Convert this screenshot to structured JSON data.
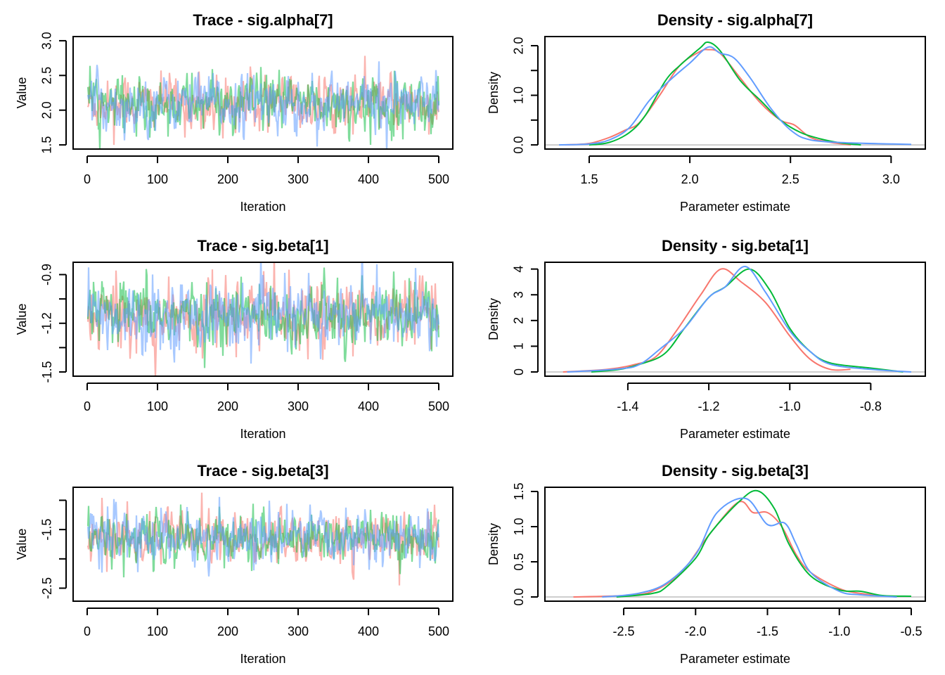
{
  "colors": {
    "chain1": "#F8766D",
    "chain2": "#00BA38",
    "chain3": "#619CFF",
    "zero_line": "#BEBEBE"
  },
  "chart_data": [
    {
      "type": "line",
      "kind": "trace",
      "title": "Trace - sig.alpha[7]",
      "xlabel": "Iteration",
      "ylabel": "Value",
      "xlim": [
        0,
        500
      ],
      "ylim": [
        1.5,
        3.0
      ],
      "xticks": [
        0,
        100,
        200,
        300,
        400,
        500
      ],
      "xtick_labels": [
        "0",
        "100",
        "200",
        "300",
        "400",
        "500"
      ],
      "yticks": [
        1.5,
        2.0,
        2.5,
        3.0
      ],
      "ytick_labels": [
        "1.5",
        "2.0",
        "2.5",
        "3.0"
      ],
      "center": 2.1,
      "spread": 0.18,
      "chains": 3,
      "iterations": 500
    },
    {
      "type": "line",
      "kind": "density",
      "title": "Density - sig.alpha[7]",
      "xlabel": "Parameter estimate",
      "ylabel": "Density",
      "xlim": [
        1.35,
        3.1
      ],
      "ylim": [
        0,
        2.1
      ],
      "xticks": [
        1.5,
        2.0,
        2.5,
        3.0
      ],
      "xtick_labels": [
        "1.5",
        "2.0",
        "2.5",
        "3.0"
      ],
      "yticks": [
        0,
        0.5,
        1.0,
        1.5,
        2.0
      ],
      "ytick_labels": [
        "0.0",
        "",
        "1.0",
        "",
        "2.0"
      ],
      "series": [
        {
          "name": "chain 1",
          "x": [
            1.38,
            1.5,
            1.6,
            1.68,
            1.75,
            1.85,
            1.95,
            2.05,
            2.09,
            2.15,
            2.25,
            2.35,
            2.45,
            2.52,
            2.6,
            2.7,
            2.8
          ],
          "y": [
            0,
            0.03,
            0.15,
            0.3,
            0.45,
            1.0,
            1.6,
            1.88,
            1.92,
            1.85,
            1.35,
            0.85,
            0.5,
            0.4,
            0.15,
            0.05,
            0
          ]
        },
        {
          "name": "chain 2",
          "x": [
            1.5,
            1.6,
            1.7,
            1.78,
            1.88,
            1.95,
            2.05,
            2.09,
            2.15,
            2.25,
            2.35,
            2.45,
            2.55,
            2.65,
            2.75,
            2.85
          ],
          "y": [
            0,
            0.05,
            0.25,
            0.6,
            1.3,
            1.6,
            1.95,
            2.07,
            1.9,
            1.3,
            0.9,
            0.5,
            0.25,
            0.12,
            0.04,
            0
          ]
        },
        {
          "name": "chain 3",
          "x": [
            1.35,
            1.5,
            1.6,
            1.7,
            1.8,
            1.9,
            2.0,
            2.09,
            2.15,
            2.22,
            2.3,
            2.4,
            2.5,
            2.6,
            2.8,
            3.0,
            3.1
          ],
          "y": [
            0,
            0.02,
            0.1,
            0.35,
            0.9,
            1.3,
            1.65,
            1.97,
            1.85,
            1.75,
            1.35,
            0.75,
            0.3,
            0.1,
            0.04,
            0.02,
            0.01
          ]
        }
      ]
    },
    {
      "type": "line",
      "kind": "trace",
      "title": "Trace - sig.beta[1]",
      "xlabel": "Iteration",
      "ylabel": "Value",
      "xlim": [
        0,
        500
      ],
      "ylim": [
        -1.5,
        -0.85
      ],
      "xticks": [
        0,
        100,
        200,
        300,
        400,
        500
      ],
      "xtick_labels": [
        "0",
        "100",
        "200",
        "300",
        "400",
        "500"
      ],
      "yticks": [
        -1.5,
        -1.35,
        -1.2,
        -1.05,
        -0.9
      ],
      "ytick_labels": [
        "-1.5",
        "",
        "-1.2",
        "",
        "-0.9"
      ],
      "center": -1.15,
      "spread": 0.09,
      "chains": 3,
      "iterations": 500
    },
    {
      "type": "line",
      "kind": "density",
      "title": "Density - sig.beta[1]",
      "xlabel": "Parameter estimate",
      "ylabel": "Density",
      "xlim": [
        -1.57,
        -0.7
      ],
      "ylim": [
        0,
        4.1
      ],
      "xticks": [
        -1.4,
        -1.2,
        -1.0,
        -0.8
      ],
      "xtick_labels": [
        "-1.4",
        "-1.2",
        "-1.0",
        "-0.8"
      ],
      "yticks": [
        0,
        1,
        2,
        3,
        4
      ],
      "ytick_labels": [
        "0",
        "1",
        "2",
        "3",
        "4"
      ],
      "series": [
        {
          "name": "chain 1",
          "x": [
            -1.56,
            -1.45,
            -1.38,
            -1.33,
            -1.28,
            -1.22,
            -1.17,
            -1.12,
            -1.06,
            -1.0,
            -0.95,
            -0.9,
            -0.85
          ],
          "y": [
            0,
            0.1,
            0.3,
            0.6,
            1.6,
            3.0,
            4.0,
            3.5,
            2.7,
            1.4,
            0.5,
            0.1,
            0.1
          ]
        },
        {
          "name": "chain 2",
          "x": [
            -1.49,
            -1.42,
            -1.37,
            -1.31,
            -1.26,
            -1.2,
            -1.16,
            -1.1,
            -1.05,
            -1.0,
            -0.95,
            -0.9,
            -0.8,
            -0.72
          ],
          "y": [
            0,
            0.1,
            0.3,
            0.7,
            1.7,
            2.9,
            3.3,
            4.0,
            3.2,
            1.7,
            0.8,
            0.35,
            0.15,
            0
          ]
        },
        {
          "name": "chain 3",
          "x": [
            -1.55,
            -1.42,
            -1.37,
            -1.32,
            -1.26,
            -1.2,
            -1.16,
            -1.11,
            -1.06,
            -1.0,
            -0.95,
            -0.9,
            -0.8,
            -0.7
          ],
          "y": [
            0,
            0.12,
            0.3,
            0.9,
            1.7,
            2.9,
            3.3,
            4.1,
            3.1,
            1.6,
            0.8,
            0.3,
            0.1,
            0
          ]
        }
      ]
    },
    {
      "type": "line",
      "kind": "trace",
      "title": "Trace - sig.beta[3]",
      "xlabel": "Iteration",
      "ylabel": "Value",
      "xlim": [
        0,
        500
      ],
      "ylim": [
        -2.65,
        -0.85
      ],
      "xticks": [
        0,
        100,
        200,
        300,
        400,
        500
      ],
      "xtick_labels": [
        "0",
        "100",
        "200",
        "300",
        "400",
        "500"
      ],
      "yticks": [
        -2.5,
        -2.0,
        -1.5,
        -1.0
      ],
      "ytick_labels": [
        "-2.5",
        "",
        "-1.5",
        ""
      ],
      "center": -1.65,
      "spread": 0.2,
      "chains": 3,
      "iterations": 500
    },
    {
      "type": "line",
      "kind": "density",
      "title": "Density - sig.beta[3]",
      "xlabel": "Parameter estimate",
      "ylabel": "Density",
      "xlim": [
        -2.95,
        -0.5
      ],
      "ylim": [
        0,
        1.5
      ],
      "xticks": [
        -2.5,
        -2.0,
        -1.5,
        -1.0,
        -0.5
      ],
      "xtick_labels": [
        "-2.5",
        "-2.0",
        "-1.5",
        "-1.0",
        "-0.5"
      ],
      "yticks": [
        0,
        0.5,
        1.0,
        1.5
      ],
      "ytick_labels": [
        "0.0",
        "0.5",
        "1.0",
        "1.5"
      ],
      "series": [
        {
          "name": "chain 1",
          "x": [
            -2.85,
            -2.5,
            -2.3,
            -2.1,
            -1.9,
            -1.7,
            -1.6,
            -1.5,
            -1.4,
            -1.3,
            -1.2,
            -1.0,
            -0.85,
            -0.6
          ],
          "y": [
            0,
            0.02,
            0.08,
            0.35,
            0.9,
            1.35,
            1.2,
            1.2,
            1.0,
            0.6,
            0.35,
            0.12,
            0.05,
            0
          ]
        },
        {
          "name": "chain 2",
          "x": [
            -2.55,
            -2.3,
            -2.2,
            -2.0,
            -1.9,
            -1.7,
            -1.57,
            -1.45,
            -1.35,
            -1.2,
            -1.0,
            -0.85,
            -0.7,
            -0.5
          ],
          "y": [
            0,
            0.05,
            0.15,
            0.55,
            0.9,
            1.35,
            1.51,
            1.25,
            0.75,
            0.3,
            0.1,
            0.08,
            0.02,
            0.01
          ]
        },
        {
          "name": "chain 3",
          "x": [
            -2.65,
            -2.4,
            -2.2,
            -2.0,
            -1.85,
            -1.65,
            -1.5,
            -1.38,
            -1.3,
            -1.2,
            -1.0,
            -0.85,
            -0.6
          ],
          "y": [
            0,
            0.05,
            0.2,
            0.6,
            1.2,
            1.4,
            1.03,
            1.05,
            0.75,
            0.35,
            0.08,
            0.03,
            0
          ]
        }
      ]
    }
  ]
}
